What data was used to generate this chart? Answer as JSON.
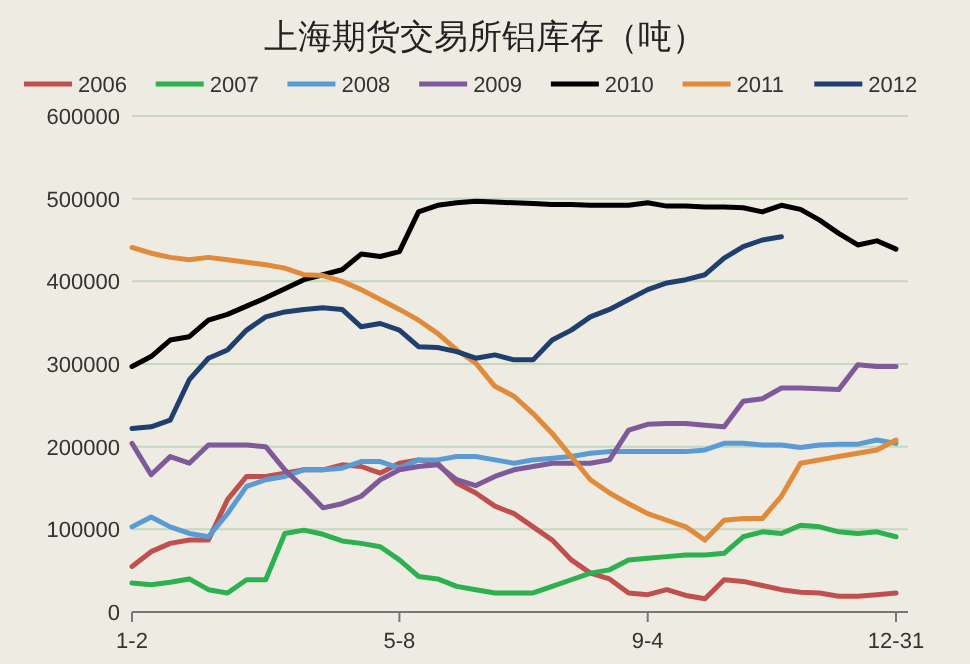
{
  "chart_data": {
    "type": "line",
    "title": "上海期货交易所铝库存（吨）",
    "categories": [
      "1-2",
      null,
      null,
      null,
      null,
      null,
      null,
      null,
      null,
      null,
      null,
      null,
      null,
      null,
      "5-8",
      null,
      null,
      null,
      null,
      null,
      null,
      null,
      null,
      null,
      null,
      null,
      null,
      "9-4",
      null,
      null,
      null,
      null,
      null,
      null,
      null,
      null,
      null,
      null,
      null,
      null,
      "12-31"
    ],
    "ylim": [
      0,
      600000
    ],
    "yticks": [
      0,
      100000,
      200000,
      300000,
      400000,
      500000,
      600000
    ],
    "grid": "y",
    "legend": "top",
    "marker": "none",
    "line_style": "solid",
    "series": [
      {
        "name": "2006",
        "color": "#c0504d",
        "values": [
          55000,
          73000,
          83000,
          87000,
          87000,
          136000,
          164000,
          164000,
          168000,
          172000,
          172000,
          178000,
          176000,
          168000,
          180000,
          184000,
          180000,
          156000,
          144000,
          128000,
          119000,
          103000,
          87000,
          63000,
          47000,
          40000,
          23000,
          21000,
          27000,
          20000,
          16000,
          39000,
          37000,
          32000,
          27000,
          24000,
          23000,
          19000,
          19000,
          21000,
          23000
        ]
      },
      {
        "name": "2007",
        "color": "#2db04e",
        "values": [
          35000,
          33000,
          36000,
          40000,
          27000,
          23000,
          39000,
          39000,
          95000,
          99000,
          94000,
          86000,
          83000,
          79000,
          63000,
          43000,
          40000,
          31000,
          27000,
          23000,
          23000,
          23000,
          31000,
          39000,
          47000,
          51000,
          63000,
          65000,
          67000,
          69000,
          69000,
          71000,
          91000,
          97000,
          95000,
          105000,
          103000,
          97000,
          95000,
          97000,
          91000
        ]
      },
      {
        "name": "2008",
        "color": "#5b9bd5",
        "values": [
          103000,
          115000,
          103000,
          95000,
          91000,
          119000,
          152000,
          160000,
          164000,
          172000,
          172000,
          174000,
          182000,
          182000,
          174000,
          184000,
          184000,
          188000,
          188000,
          184000,
          180000,
          184000,
          186000,
          188000,
          192000,
          194000,
          194000,
          194000,
          194000,
          194000,
          196000,
          204000,
          204000,
          202000,
          202000,
          199000,
          202000,
          203000,
          203000,
          208000,
          204000
        ]
      },
      {
        "name": "2009",
        "color": "#7f5a9a",
        "values": [
          204000,
          166000,
          188000,
          180000,
          202000,
          202000,
          202000,
          200000,
          172000,
          150000,
          126000,
          131000,
          140000,
          160000,
          172000,
          176000,
          178000,
          160000,
          153000,
          164000,
          172000,
          176000,
          180000,
          180000,
          180000,
          184000,
          220000,
          227000,
          228000,
          228000,
          226000,
          224000,
          255000,
          258000,
          271000,
          271000,
          270000,
          269000,
          299000,
          297000,
          297000
        ]
      },
      {
        "name": "2010",
        "color": "#000000",
        "values": [
          297000,
          309000,
          329000,
          333000,
          353000,
          360000,
          370000,
          380000,
          391000,
          402000,
          408000,
          414000,
          433000,
          430000,
          436000,
          484000,
          492000,
          495000,
          497000,
          496000,
          495000,
          494000,
          493000,
          493000,
          492000,
          492000,
          492000,
          495000,
          491000,
          491000,
          490000,
          490000,
          489000,
          484000,
          492000,
          487000,
          474000,
          458000,
          444000,
          449000,
          439000
        ]
      },
      {
        "name": "2011",
        "color": "#e08a3c",
        "values": [
          441000,
          434000,
          429000,
          426000,
          429000,
          426000,
          423000,
          420000,
          416000,
          408000,
          407000,
          400000,
          390000,
          378000,
          366000,
          353000,
          337000,
          317000,
          301000,
          273000,
          261000,
          240000,
          216000,
          188000,
          160000,
          144000,
          131000,
          119000,
          111000,
          103000,
          87000,
          111000,
          113000,
          113000,
          140000,
          180000,
          184000,
          188000,
          192000,
          196000,
          208000
        ]
      },
      {
        "name": "2012",
        "color": "#1f3f6e",
        "values": [
          222000,
          224000,
          232000,
          281000,
          307000,
          317000,
          341000,
          357000,
          363000,
          366000,
          368000,
          366000,
          345000,
          349000,
          341000,
          321000,
          320000,
          315000,
          307000,
          311000,
          305000,
          305000,
          329000,
          341000,
          357000,
          366000,
          378000,
          390000,
          398000,
          402000,
          408000,
          428000,
          442000,
          450000,
          454000,
          null,
          null,
          null,
          null,
          null,
          null
        ]
      }
    ]
  }
}
